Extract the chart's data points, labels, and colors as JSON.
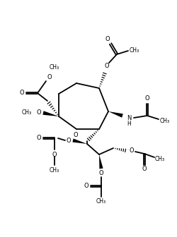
{
  "figsize": [
    2.5,
    3.36
  ],
  "dpi": 100,
  "xlim": [
    0,
    250
  ],
  "ylim": [
    0,
    336
  ],
  "lw": 1.3,
  "lw_wedge": 0.85,
  "fs": 7.0,
  "fs_sm": 6.0
}
